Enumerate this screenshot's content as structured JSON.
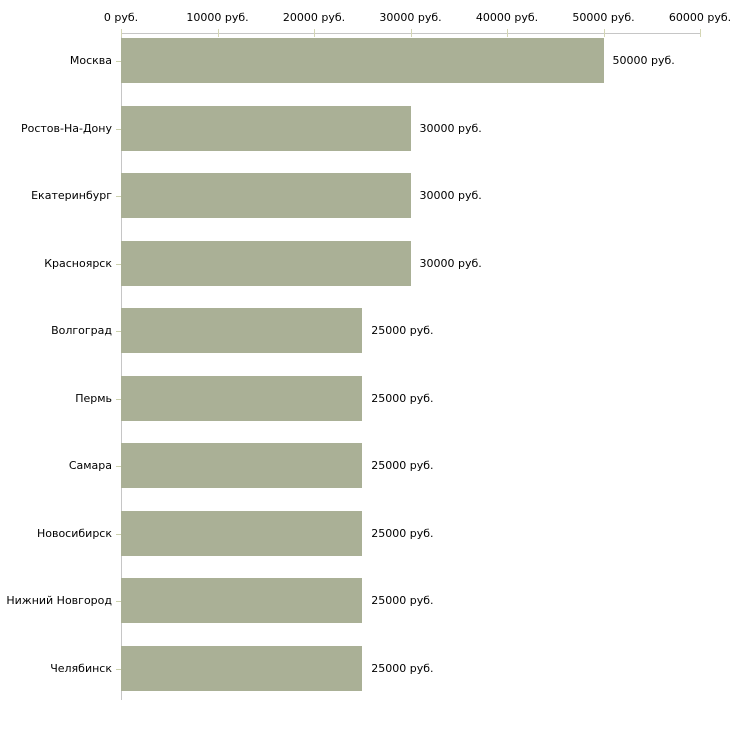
{
  "chart_data": {
    "type": "bar",
    "orientation": "horizontal",
    "title": "",
    "xlabel": "",
    "ylabel": "",
    "categories": [
      "Москва",
      "Ростов-На-Дону",
      "Екатеринбург",
      "Красноярск",
      "Волгоград",
      "Пермь",
      "Самара",
      "Новосибирск",
      "Нижний Новгород",
      "Челябинск"
    ],
    "values": [
      50000,
      30000,
      30000,
      30000,
      25000,
      25000,
      25000,
      25000,
      25000,
      25000
    ],
    "value_labels": [
      "50000 руб.",
      "30000 руб.",
      "30000 руб.",
      "30000 руб.",
      "25000 руб.",
      "25000 руб.",
      "25000 руб.",
      "25000 руб.",
      "25000 руб.",
      "25000 руб."
    ],
    "x_axis": {
      "tick_values": [
        0,
        10000,
        20000,
        30000,
        40000,
        50000,
        60000
      ],
      "tick_labels": [
        "0 руб.",
        "10000 руб.",
        "20000 руб.",
        "30000 руб.",
        "40000 руб.",
        "50000 руб.",
        "60000 руб."
      ],
      "position": "top"
    },
    "xlim": [
      0,
      60000
    ],
    "grid": false,
    "legend": null,
    "colors": {
      "bar": "#aab096",
      "axis_line": "#c6c6c6",
      "x_tick": "#d4d6b4",
      "cat_tick": "#ccd1ad",
      "text": "#000000",
      "background": "#ffffff"
    }
  }
}
